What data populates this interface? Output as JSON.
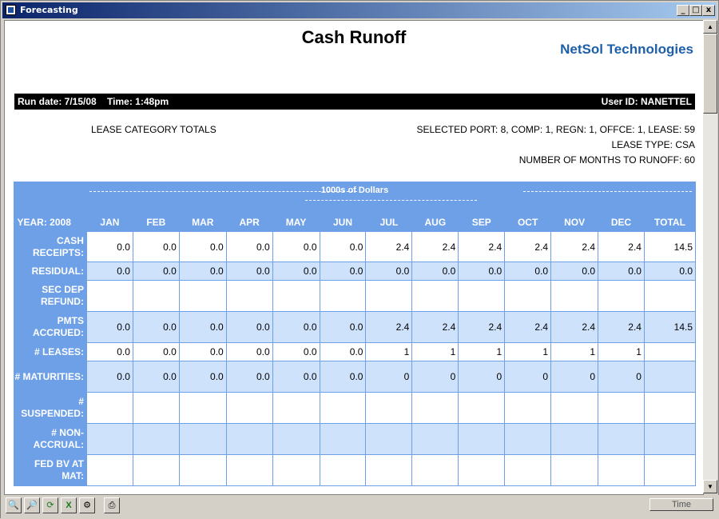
{
  "window": {
    "title": "Forecasting",
    "controls": [
      "_",
      "□",
      "x"
    ]
  },
  "report": {
    "title": "Cash Runoff",
    "company": "NetSol Technologies",
    "run_info": "Run date: 7/15/08    Time: 1:48pm",
    "user_id": "User ID: NANETTEL",
    "category": "LEASE CATEGORY TOTALS",
    "selection": "SELECTED PORT: 8, COMP: 1, REGN: 1, OFFCE: 1, LEASE: 59",
    "lease_type": "LEASE TYPE: CSA",
    "months": "NUMBER OF MONTHS TO RUNOFF: 60",
    "units": "1000s of Dollars"
  },
  "table": {
    "year_label": "YEAR: 2008",
    "columns": [
      "JAN",
      "FEB",
      "MAR",
      "APR",
      "MAY",
      "JUN",
      "JUL",
      "AUG",
      "SEP",
      "OCT",
      "NOV",
      "DEC",
      "TOTAL"
    ],
    "rows": [
      {
        "label": "CASH RECEIPTS:",
        "values": [
          "0.0",
          "0.0",
          "0.0",
          "0.0",
          "0.0",
          "0.0",
          "2.4",
          "2.4",
          "2.4",
          "2.4",
          "2.4",
          "2.4",
          "14.5"
        ]
      },
      {
        "label": "RESIDUAL:",
        "values": [
          "0.0",
          "0.0",
          "0.0",
          "0.0",
          "0.0",
          "0.0",
          "0.0",
          "0.0",
          "0.0",
          "0.0",
          "0.0",
          "0.0",
          "0.0"
        ]
      },
      {
        "label": "SEC DEP REFUND:",
        "values": [
          "",
          "",
          "",
          "",
          "",
          "",
          "",
          "",
          "",
          "",
          "",
          "",
          ""
        ]
      },
      {
        "label": "PMTS ACCRUED:",
        "values": [
          "0.0",
          "0.0",
          "0.0",
          "0.0",
          "0.0",
          "0.0",
          "2.4",
          "2.4",
          "2.4",
          "2.4",
          "2.4",
          "2.4",
          "14.5"
        ]
      },
      {
        "label": "# LEASES:",
        "values": [
          "0.0",
          "0.0",
          "0.0",
          "0.0",
          "0.0",
          "0.0",
          "1",
          "1",
          "1",
          "1",
          "1",
          "1",
          ""
        ]
      },
      {
        "label": "# MATURITIES:",
        "values": [
          "0.0",
          "0.0",
          "0.0",
          "0.0",
          "0.0",
          "0.0",
          "0",
          "0",
          "0",
          "0",
          "0",
          "0",
          ""
        ]
      },
      {
        "label": "# SUSPENDED:",
        "values": [
          "",
          "",
          "",
          "",
          "",
          "",
          "",
          "",
          "",
          "",
          "",
          "",
          ""
        ]
      },
      {
        "label": "# NON-ACCRUAL:",
        "values": [
          "",
          "",
          "",
          "",
          "",
          "",
          "",
          "",
          "",
          "",
          "",
          "",
          ""
        ]
      },
      {
        "label": "FED BV AT MAT:",
        "values": [
          "",
          "",
          "",
          "",
          "",
          "",
          "",
          "",
          "",
          "",
          "",
          "",
          ""
        ]
      }
    ]
  },
  "toolbar": {
    "tools": [
      "zoom-out-icon",
      "zoom-in-icon",
      "refresh-icon",
      "excel-icon",
      "print-setup-icon",
      "print-icon"
    ],
    "time_label": "Time"
  }
}
